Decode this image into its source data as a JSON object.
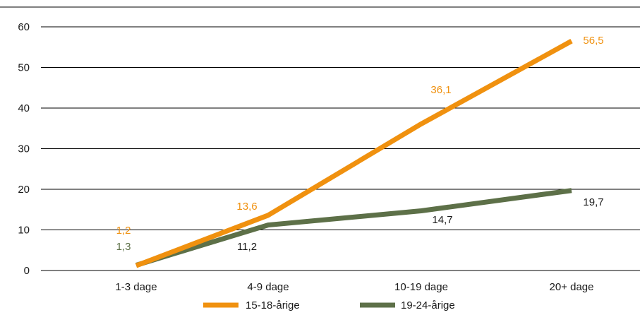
{
  "chart_data": {
    "type": "line",
    "title": "",
    "xlabel": "",
    "ylabel": "",
    "categories": [
      "1-3 dage",
      "4-9 dage",
      "10-19 dage",
      "20+ dage"
    ],
    "ylim": [
      0,
      60
    ],
    "yticks": [
      "0",
      "10",
      "20",
      "30",
      "40",
      "50",
      "60"
    ],
    "grid": true,
    "legend_position": "bottom",
    "series": [
      {
        "name": "15-18-årige",
        "color": "#f0910f",
        "values": [
          1.2,
          13.6,
          36.1,
          56.5
        ],
        "labels": [
          "1,2",
          "13,6",
          "36,1",
          "56,5"
        ]
      },
      {
        "name": "19-24-årige",
        "color": "#5d7048",
        "values": [
          1.3,
          11.2,
          14.7,
          19.7
        ],
        "labels": [
          "1,3",
          "11,2",
          "14,7",
          "19,7"
        ]
      }
    ]
  }
}
